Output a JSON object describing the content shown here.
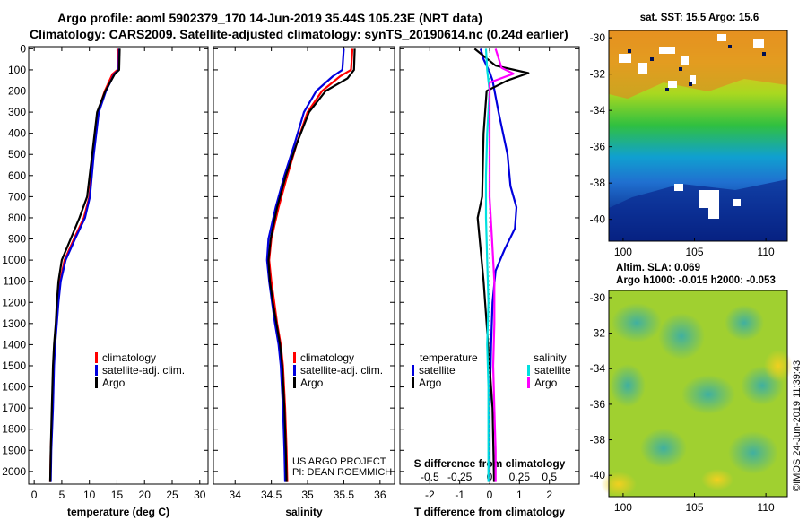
{
  "header": {
    "title_line1": "Argo profile: aoml 5902379_170 14-Jun-2019 35.44S 105.23E (NRT data)",
    "title_line2": "Climatology: CARS2009. Satellite-adjusted climatology: synTS_20190614.nc (0.24d earlier)"
  },
  "colors": {
    "climatology": "#ff0000",
    "satellite": "#0000dd",
    "argo": "#000000",
    "sal_satellite": "#00e0e0",
    "sal_argo": "#ff00ff"
  },
  "chart_data": [
    {
      "type": "line",
      "title": "",
      "xlabel": "temperature (deg C)",
      "ylabel": "",
      "xlim": [
        -1,
        31.5
      ],
      "ylim": [
        2060,
        -10
      ],
      "xticks": [
        0,
        5,
        10,
        15,
        20,
        25,
        30
      ],
      "yticks": [
        0,
        100,
        200,
        300,
        400,
        500,
        600,
        700,
        800,
        900,
        1000,
        1100,
        1200,
        1300,
        1400,
        1500,
        1600,
        1700,
        1800,
        1900,
        2000
      ],
      "legend": [
        "climatology",
        "satellite-adj. clim.",
        "Argo"
      ],
      "series": [
        {
          "name": "climatology",
          "color": "#ff0000",
          "points": [
            [
              15.2,
              0
            ],
            [
              15.1,
              100
            ],
            [
              14.2,
              120
            ],
            [
              12.8,
              200
            ],
            [
              11.5,
              300
            ],
            [
              10.7,
              500
            ],
            [
              10.0,
              700
            ],
            [
              9.0,
              800
            ],
            [
              7.2,
              900
            ],
            [
              5.5,
              1000
            ],
            [
              4.7,
              1100
            ],
            [
              4.3,
              1200
            ],
            [
              4.0,
              1300
            ],
            [
              3.7,
              1400
            ],
            [
              3.5,
              1500
            ],
            [
              3.3,
              1700
            ],
            [
              3.0,
              1900
            ],
            [
              2.9,
              2050
            ]
          ]
        },
        {
          "name": "satellite-adj. clim.",
          "color": "#0000dd",
          "points": [
            [
              15.4,
              0
            ],
            [
              15.3,
              100
            ],
            [
              14.5,
              120
            ],
            [
              13.0,
              200
            ],
            [
              11.7,
              300
            ],
            [
              10.8,
              500
            ],
            [
              10.1,
              700
            ],
            [
              9.2,
              800
            ],
            [
              7.4,
              900
            ],
            [
              5.7,
              1000
            ],
            [
              4.8,
              1100
            ],
            [
              4.4,
              1200
            ],
            [
              4.1,
              1300
            ],
            [
              3.8,
              1400
            ],
            [
              3.6,
              1500
            ],
            [
              3.4,
              1700
            ],
            [
              3.1,
              1900
            ],
            [
              3.0,
              2050
            ]
          ]
        },
        {
          "name": "Argo",
          "color": "#000000",
          "points": [
            [
              15.5,
              0
            ],
            [
              15.4,
              100
            ],
            [
              14.6,
              120
            ],
            [
              12.9,
              200
            ],
            [
              11.4,
              300
            ],
            [
              10.5,
              500
            ],
            [
              9.6,
              700
            ],
            [
              8.2,
              800
            ],
            [
              6.6,
              900
            ],
            [
              5.0,
              1000
            ],
            [
              4.4,
              1100
            ],
            [
              4.1,
              1200
            ],
            [
              3.9,
              1300
            ],
            [
              3.6,
              1400
            ],
            [
              3.4,
              1500
            ],
            [
              3.2,
              1700
            ],
            [
              3.0,
              1900
            ],
            [
              2.9,
              2050
            ]
          ]
        }
      ]
    },
    {
      "type": "line",
      "title": "",
      "xlabel": "salinity",
      "ylabel": "",
      "xlim": [
        33.7,
        36.2
      ],
      "ylim": [
        2060,
        -10
      ],
      "xticks": [
        34,
        34.5,
        35,
        35.5,
        36
      ],
      "legend": [
        "climatology",
        "satellite-adj. clim.",
        "Argo"
      ],
      "annotations": [
        "US ARGO PROJECT",
        "PI: DEAN ROEMMICH"
      ],
      "series": [
        {
          "name": "climatology",
          "color": "#ff0000",
          "points": [
            [
              35.62,
              0
            ],
            [
              35.6,
              100
            ],
            [
              35.45,
              130
            ],
            [
              35.2,
              200
            ],
            [
              35.0,
              300
            ],
            [
              34.85,
              450
            ],
            [
              34.72,
              600
            ],
            [
              34.6,
              750
            ],
            [
              34.5,
              900
            ],
            [
              34.47,
              1000
            ],
            [
              34.5,
              1100
            ],
            [
              34.54,
              1200
            ],
            [
              34.58,
              1300
            ],
            [
              34.63,
              1400
            ],
            [
              34.66,
              1500
            ],
            [
              34.69,
              1700
            ],
            [
              34.71,
              1900
            ],
            [
              34.72,
              2050
            ]
          ]
        },
        {
          "name": "satellite-adj. clim.",
          "color": "#0000dd",
          "points": [
            [
              35.5,
              0
            ],
            [
              35.48,
              100
            ],
            [
              35.35,
              130
            ],
            [
              35.12,
              200
            ],
            [
              34.95,
              300
            ],
            [
              34.82,
              450
            ],
            [
              34.68,
              600
            ],
            [
              34.56,
              750
            ],
            [
              34.46,
              900
            ],
            [
              34.44,
              1000
            ],
            [
              34.47,
              1100
            ],
            [
              34.51,
              1200
            ],
            [
              34.55,
              1300
            ],
            [
              34.6,
              1400
            ],
            [
              34.63,
              1500
            ],
            [
              34.66,
              1700
            ],
            [
              34.68,
              1900
            ],
            [
              34.69,
              2050
            ]
          ]
        },
        {
          "name": "Argo",
          "color": "#000000",
          "points": [
            [
              35.65,
              0
            ],
            [
              35.64,
              100
            ],
            [
              35.55,
              140
            ],
            [
              35.25,
              200
            ],
            [
              35.02,
              300
            ],
            [
              34.85,
              450
            ],
            [
              34.7,
              600
            ],
            [
              34.58,
              750
            ],
            [
              34.49,
              900
            ],
            [
              34.46,
              1000
            ],
            [
              34.48,
              1100
            ],
            [
              34.52,
              1200
            ],
            [
              34.57,
              1300
            ],
            [
              34.62,
              1400
            ],
            [
              34.65,
              1500
            ],
            [
              34.68,
              1700
            ],
            [
              34.7,
              1900
            ],
            [
              34.71,
              2050
            ]
          ]
        }
      ]
    },
    {
      "type": "line",
      "title": "",
      "xlabel": "T difference from climatology",
      "ylabel": "",
      "xlim": [
        -3,
        3
      ],
      "ylim": [
        2060,
        -10
      ],
      "xticks": [
        -2,
        -1,
        0,
        1,
        2
      ],
      "secondary_xlabel": "S difference from climatology",
      "secondary_xlim": [
        -0.75,
        0.75
      ],
      "secondary_xticks": [
        -0.5,
        -0.25,
        0,
        0.25,
        0.5
      ],
      "legend_temperature_title": "temperature",
      "legend_salinity_title": "salinity",
      "legend": [
        "satellite",
        "Argo",
        "satellite",
        "Argo"
      ],
      "series": [
        {
          "name": "T satellite",
          "color": "#0000dd",
          "points": [
            [
              -0.3,
              0
            ],
            [
              -0.2,
              50
            ],
            [
              0.0,
              110
            ],
            [
              0.1,
              150
            ],
            [
              0.3,
              300
            ],
            [
              0.6,
              500
            ],
            [
              0.7,
              650
            ],
            [
              0.9,
              750
            ],
            [
              0.85,
              850
            ],
            [
              0.5,
              950
            ],
            [
              0.2,
              1050
            ],
            [
              0.1,
              1200
            ],
            [
              0.05,
              1400
            ],
            [
              0.0,
              1700
            ],
            [
              0.0,
              2050
            ]
          ]
        },
        {
          "name": "T Argo",
          "color": "#000000",
          "points": [
            [
              -0.5,
              0
            ],
            [
              0.2,
              80
            ],
            [
              1.3,
              115
            ],
            [
              0.6,
              150
            ],
            [
              -0.1,
              200
            ],
            [
              -0.2,
              400
            ],
            [
              -0.25,
              700
            ],
            [
              -0.4,
              800
            ],
            [
              -0.3,
              950
            ],
            [
              -0.2,
              1100
            ],
            [
              -0.1,
              1300
            ],
            [
              0.0,
              1500
            ],
            [
              0.1,
              1700
            ],
            [
              0.15,
              2050
            ]
          ]
        },
        {
          "name": "S satellite",
          "color": "#00e0e0",
          "points": [
            [
              -0.03,
              0
            ],
            [
              -0.02,
              100
            ],
            [
              0.0,
              200
            ],
            [
              -0.02,
              400
            ],
            [
              -0.03,
              600
            ],
            [
              -0.03,
              800
            ],
            [
              -0.02,
              1000
            ],
            [
              -0.01,
              1200
            ],
            [
              -0.02,
              1400
            ],
            [
              -0.01,
              1600
            ],
            [
              -0.01,
              1800
            ],
            [
              -0.01,
              2050
            ]
          ]
        },
        {
          "name": "S Argo",
          "color": "#ff00ff",
          "points": [
            [
              0.05,
              0
            ],
            [
              0.1,
              90
            ],
            [
              0.2,
              118
            ],
            [
              0.0,
              160
            ],
            [
              0.0,
              400
            ],
            [
              0.0,
              700
            ],
            [
              0.02,
              900
            ],
            [
              0.04,
              1100
            ],
            [
              0.04,
              1300
            ],
            [
              0.03,
              1500
            ],
            [
              0.04,
              1700
            ],
            [
              0.05,
              1900
            ],
            [
              0.05,
              2050
            ]
          ]
        }
      ]
    },
    {
      "type": "heatmap",
      "title": "sat. SST: 15.5 Argo: 15.6",
      "xlim": [
        99,
        111.5
      ],
      "ylim": [
        -41.2,
        -29.6
      ],
      "xticks": [
        100,
        105,
        110
      ],
      "yticks": [
        -30,
        -32,
        -34,
        -36,
        -38,
        -40
      ]
    },
    {
      "type": "heatmap",
      "title": "Altim. SLA: 0.069",
      "subtitle": "Argo h1000: -0.015 h2000: -0.053",
      "xlim": [
        99,
        111.5
      ],
      "ylim": [
        -41.2,
        -29.6
      ],
      "xticks": [
        100,
        105,
        110
      ],
      "yticks": [
        -30,
        -32,
        -34,
        -36,
        -38,
        -40
      ]
    }
  ],
  "credit": "©IMOS 24-Jun-2019 11:39:43"
}
